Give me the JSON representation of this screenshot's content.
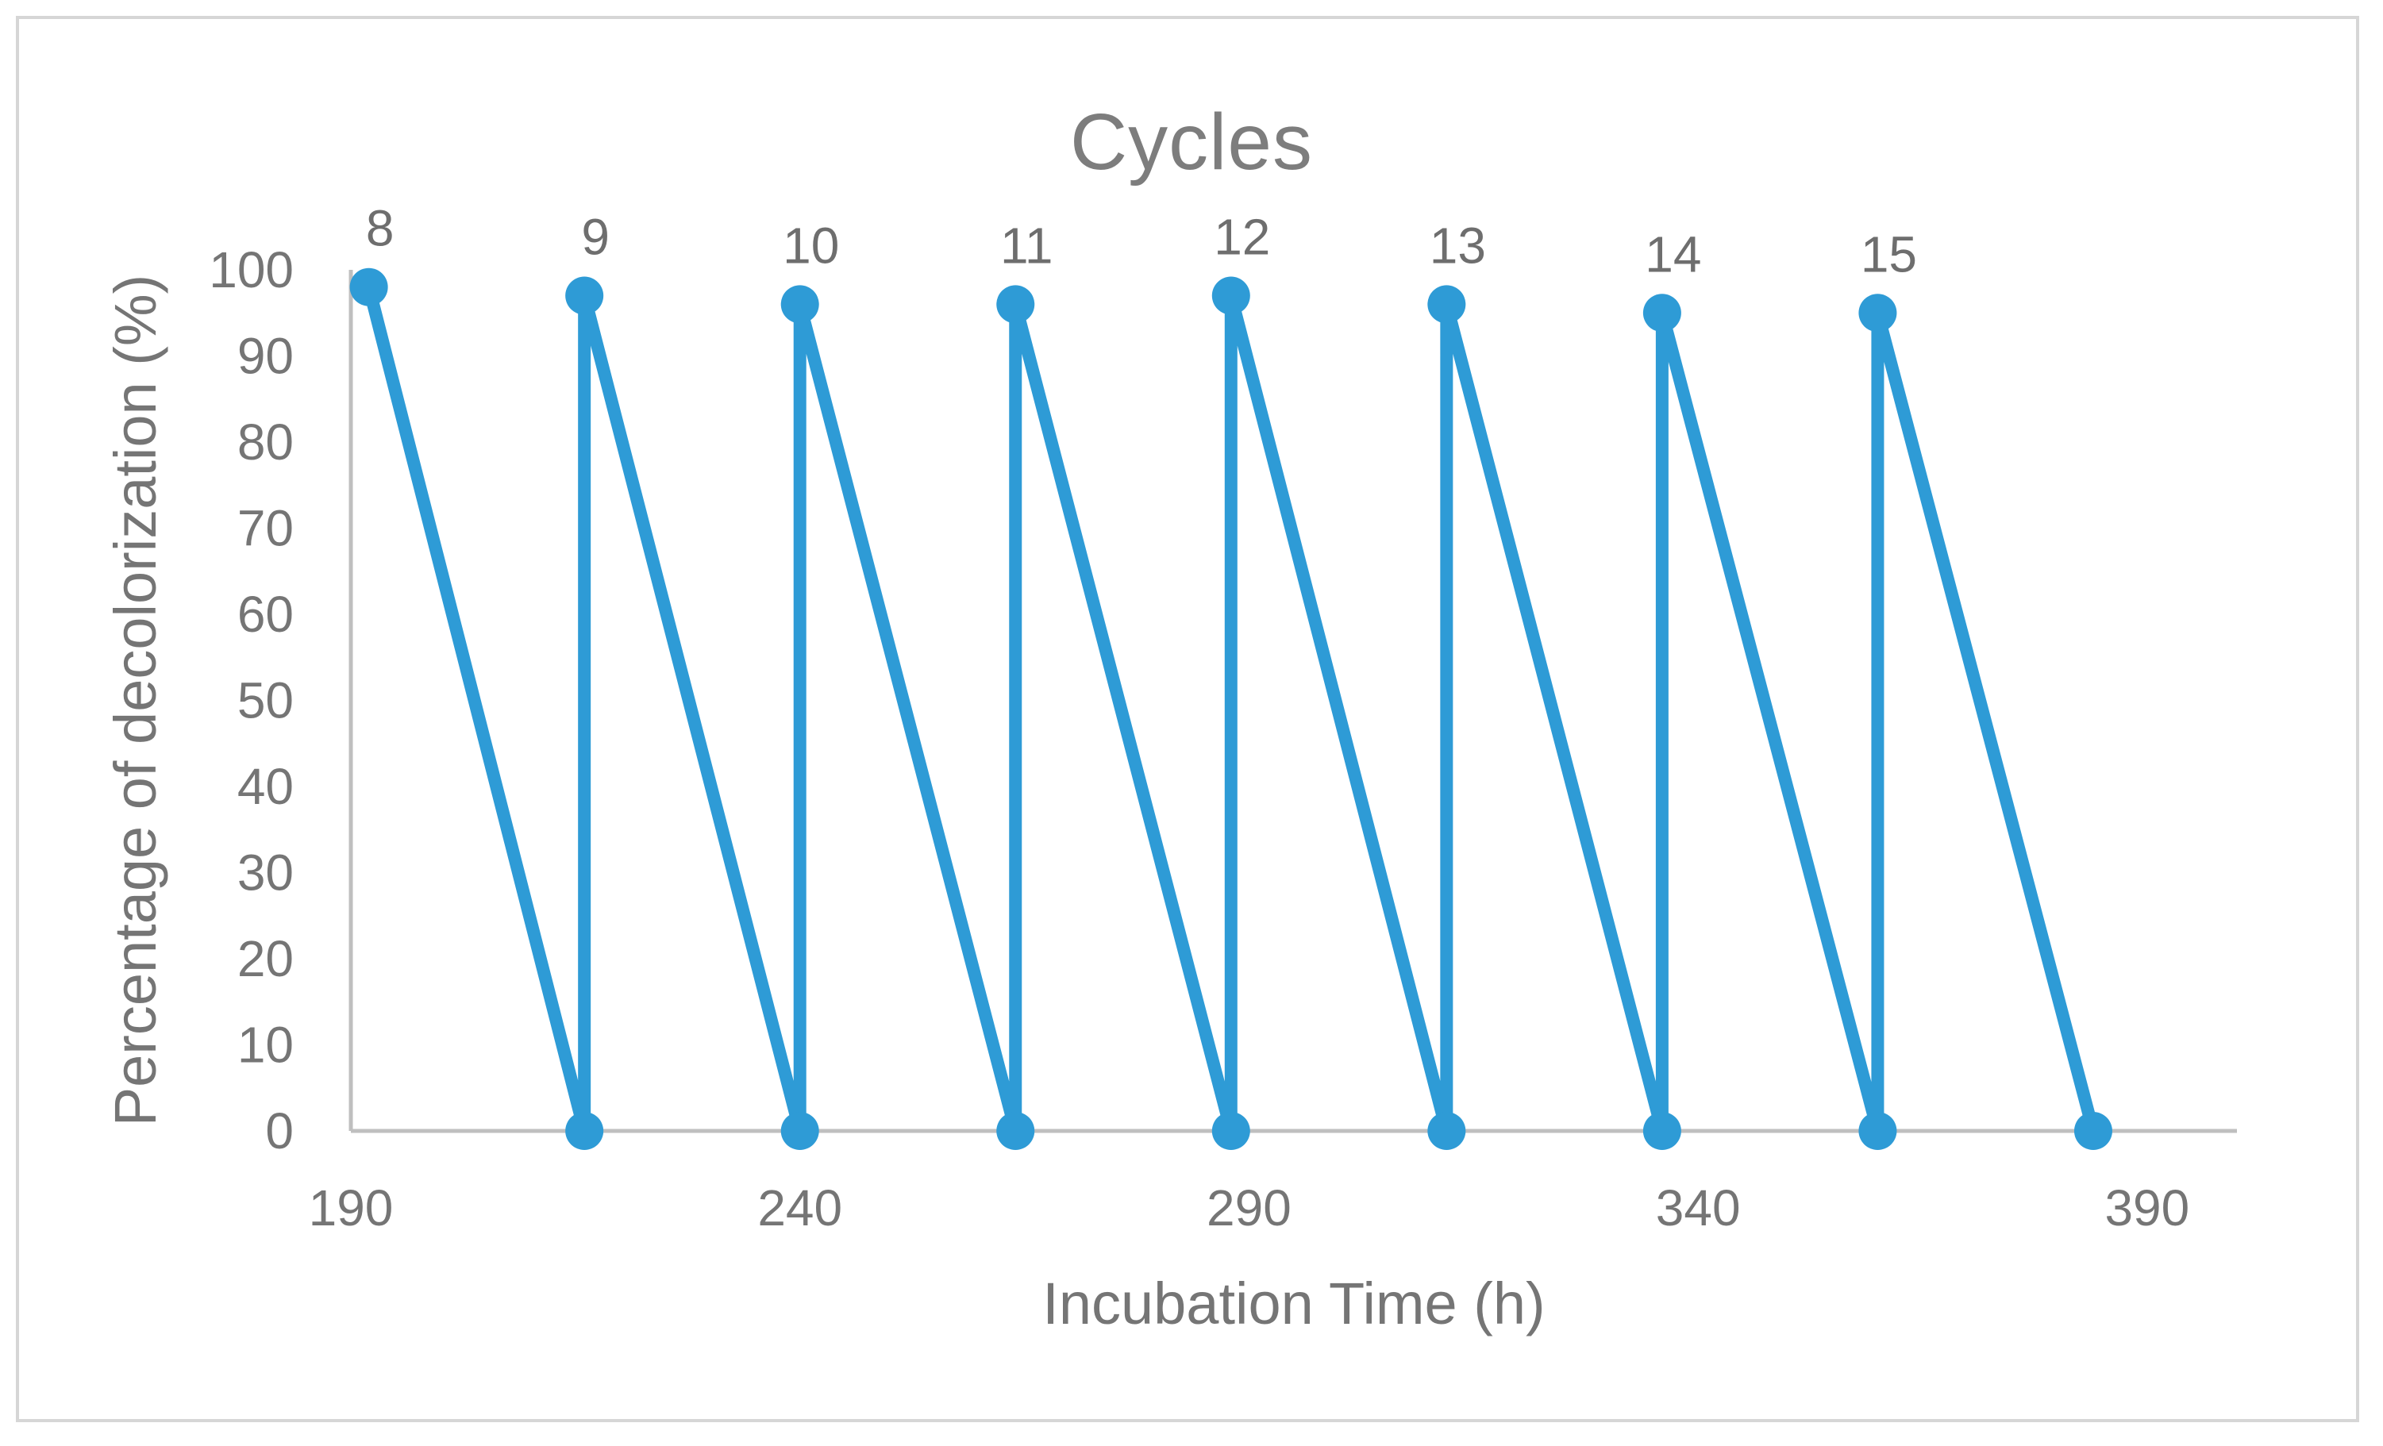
{
  "title": "Cycles",
  "colors": {
    "line": "#2e9bd6",
    "axis_line": "#bfbfbf",
    "tick_text": "#757575",
    "title_text": "#7d7d7d",
    "frame_border": "#d6d6d6",
    "background": "#ffffff"
  },
  "chart_data": {
    "type": "line",
    "title": "Cycles",
    "xlabel": "Incubation Time (h)",
    "ylabel": "Percentage of decolorization (%)",
    "xlim": [
      190,
      400
    ],
    "ylim": [
      0,
      100
    ],
    "x_ticks": [
      190,
      240,
      290,
      340,
      390
    ],
    "y_ticks": [
      0,
      10,
      20,
      30,
      40,
      50,
      60,
      70,
      80,
      90,
      100
    ],
    "grid": false,
    "legend": "none",
    "marker": "circle",
    "series": [
      {
        "name": "Cycles",
        "points": [
          {
            "x": 192,
            "y": 98,
            "label": "8"
          },
          {
            "x": 216,
            "y": 0
          },
          {
            "x": 216,
            "y": 97,
            "label": "9"
          },
          {
            "x": 240,
            "y": 0
          },
          {
            "x": 240,
            "y": 96,
            "label": "10"
          },
          {
            "x": 264,
            "y": 0
          },
          {
            "x": 264,
            "y": 96,
            "label": "11"
          },
          {
            "x": 288,
            "y": 0
          },
          {
            "x": 288,
            "y": 97,
            "label": "12"
          },
          {
            "x": 312,
            "y": 0
          },
          {
            "x": 312,
            "y": 96,
            "label": "13"
          },
          {
            "x": 336,
            "y": 0
          },
          {
            "x": 336,
            "y": 95,
            "label": "14"
          },
          {
            "x": 360,
            "y": 0
          },
          {
            "x": 360,
            "y": 95,
            "label": "15"
          },
          {
            "x": 384,
            "y": 0
          }
        ]
      }
    ]
  }
}
